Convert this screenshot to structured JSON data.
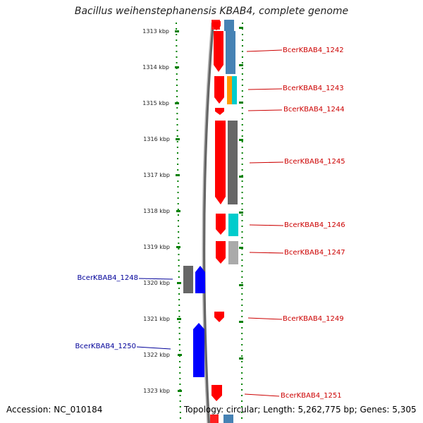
{
  "title": "Bacillus weihenstephanensis KBAB4, complete genome",
  "accession": "Accession: NC_010184",
  "summary": "Topology: circular; Length: 5,262,775 bp; Genes: 5,305",
  "ruler": {
    "ticks": [
      {
        "kbp": 1313,
        "label": "1313 kbp"
      },
      {
        "kbp": 1314,
        "label": "1314 kbp"
      },
      {
        "kbp": 1315,
        "label": "1315 kbp"
      },
      {
        "kbp": 1316,
        "label": "1316 kbp"
      },
      {
        "kbp": 1317,
        "label": "1317 kbp"
      },
      {
        "kbp": 1318,
        "label": "1318 kbp"
      },
      {
        "kbp": 1319,
        "label": "1319 kbp"
      },
      {
        "kbp": 1320,
        "label": "1320 kbp"
      },
      {
        "kbp": 1321,
        "label": "1321 kbp"
      },
      {
        "kbp": 1322,
        "label": "1322 kbp"
      },
      {
        "kbp": 1323,
        "label": "1323 kbp"
      }
    ]
  },
  "colors": {
    "forward_cds": "#ff0000",
    "reverse_cds": "#0000ff",
    "forward_label": "#cc0000",
    "reverse_label": "#000099",
    "backbone": "#888888",
    "ruler_dots": "#008000",
    "cog_blue": "#4682b4",
    "cog_orange": "#ff9900",
    "cog_cyan": "#00cccc",
    "cog_dark_gray": "#666666",
    "cog_light_gray": "#aaaaaa"
  },
  "genes": [
    {
      "label": "BcerKBAB4_1242",
      "strand": "forward"
    },
    {
      "label": "BcerKBAB4_1243",
      "strand": "forward"
    },
    {
      "label": "BcerKBAB4_1244",
      "strand": "forward"
    },
    {
      "label": "BcerKBAB4_1245",
      "strand": "forward"
    },
    {
      "label": "BcerKBAB4_1246",
      "strand": "forward"
    },
    {
      "label": "BcerKBAB4_1247",
      "strand": "forward"
    },
    {
      "label": "BcerKBAB4_1248",
      "strand": "reverse"
    },
    {
      "label": "BcerKBAB4_1249",
      "strand": "forward"
    },
    {
      "label": "BcerKBAB4_1250",
      "strand": "reverse"
    },
    {
      "label": "BcerKBAB4_1251",
      "strand": "forward"
    }
  ]
}
